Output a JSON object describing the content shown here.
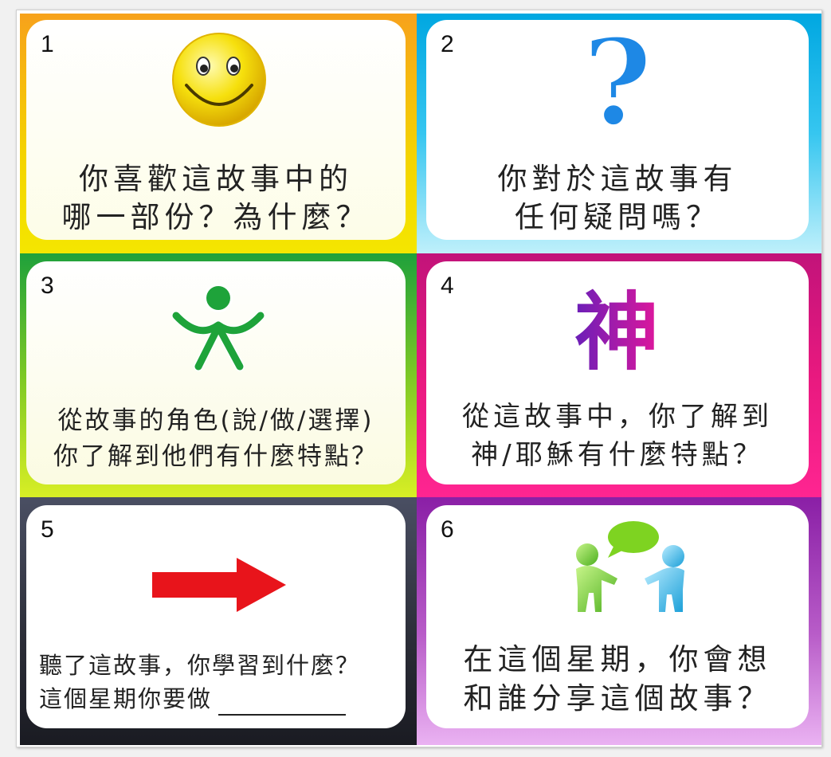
{
  "cards": [
    {
      "number": "1",
      "lines": [
        "你喜歡這故事中的",
        "哪一部份？為什麼？"
      ],
      "icon": "smiley-face-icon",
      "border_colors": [
        "#f7a21b",
        "#f4e600"
      ]
    },
    {
      "number": "2",
      "lines": [
        "你對於這故事有",
        "任何疑問嗎？"
      ],
      "icon": "question-mark-icon",
      "icon_glyph": "?",
      "border_colors": [
        "#00a7e1",
        "#bff0fb"
      ]
    },
    {
      "number": "3",
      "lines": [
        "從故事的角色(說/做/選擇)",
        "你了解到他們有什麼特點？"
      ],
      "icon": "person-figure-icon",
      "border_colors": [
        "#22a83c",
        "#d8ee25"
      ]
    },
    {
      "number": "4",
      "lines": [
        "從這故事中，你了解到",
        "神/耶穌有什麼特點？"
      ],
      "icon": "god-character-icon",
      "icon_glyph": "神",
      "border_colors": [
        "#d6157e",
        "#ff1f8d"
      ]
    },
    {
      "number": "5",
      "lines": [
        "聽了這故事，你學習到什麼？",
        "這個星期你要做"
      ],
      "icon": "right-arrow-icon",
      "border_colors": [
        "#3a3f52",
        "#22232b"
      ]
    },
    {
      "number": "6",
      "lines": [
        "在這個星期，你會想",
        "和誰分享這個故事？"
      ],
      "icon": "two-people-talking-icon",
      "border_colors": [
        "#8a1fa6",
        "#e6a6ef"
      ]
    }
  ],
  "colors": {
    "smiley_yellow": "#f6e00d",
    "question_blue": "#1e88e5",
    "person_green": "#1ea33a",
    "arrow_red": "#e8141b",
    "speech_green": "#7ed321",
    "person_blue": "#2fb7ea"
  }
}
